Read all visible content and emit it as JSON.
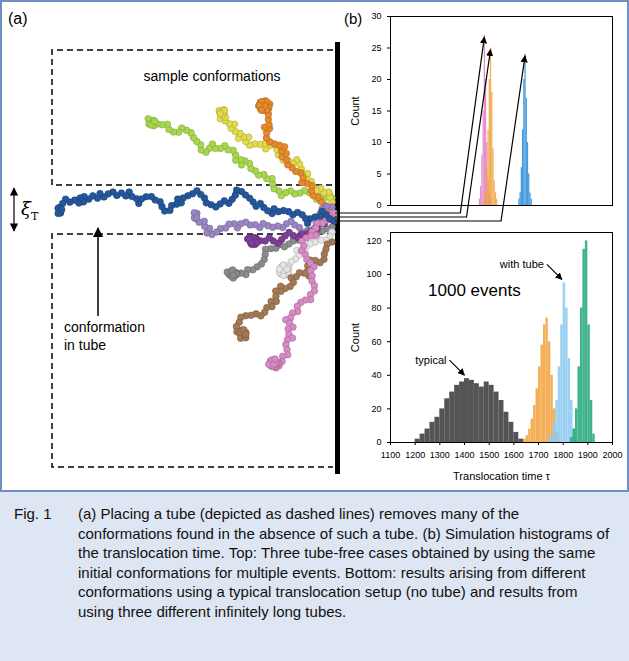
{
  "panels": {
    "a": "(a)",
    "b": "(b)"
  },
  "diagram": {
    "sample_label": "sample conformations",
    "tube_label": "conformation in tube",
    "tube_width_symbol": {
      "symbol": "ξ",
      "subscript": "T"
    }
  },
  "chart_data": [
    {
      "type": "histogram",
      "tick_labels": "y",
      "ylabel": "Count",
      "xlim": [
        1100,
        2000
      ],
      "ylim": [
        0,
        30
      ],
      "yticks": [
        0,
        5,
        10,
        15,
        20,
        25,
        30
      ],
      "series": [
        {
          "color": "#e07fc4",
          "bins": [
            1460,
            1465,
            1470,
            1475,
            1480,
            1485,
            1490,
            1495,
            1500,
            1505,
            1510
          ],
          "counts": [
            1,
            3,
            8,
            15,
            27,
            20,
            10,
            4,
            2,
            1
          ]
        },
        {
          "color": "#f0a23c",
          "bins": [
            1480,
            1485,
            1490,
            1495,
            1500,
            1505,
            1510,
            1515,
            1520,
            1525,
            1530,
            1535
          ],
          "counts": [
            1,
            2,
            6,
            12,
            20,
            25,
            18,
            9,
            4,
            2,
            1
          ]
        },
        {
          "color": "#2b8cd8",
          "bins": [
            1620,
            1625,
            1630,
            1635,
            1640,
            1645,
            1650,
            1655,
            1660,
            1665,
            1670,
            1675
          ],
          "counts": [
            1,
            2,
            6,
            12,
            20,
            24,
            17,
            10,
            5,
            2,
            1
          ]
        }
      ]
    },
    {
      "type": "histogram",
      "xlabel": "Translocation time τ",
      "ylabel": "Count",
      "xlim": [
        1100,
        2000
      ],
      "xticks": [
        1100,
        1200,
        1300,
        1400,
        1500,
        1600,
        1700,
        1800,
        1900,
        2000
      ],
      "ylim": [
        0,
        125
      ],
      "yticks": [
        0,
        20,
        40,
        60,
        80,
        100,
        120
      ],
      "annotations": [
        "1000 events"
      ],
      "series": [
        {
          "color": "#3c3c3c",
          "annotation": "typical",
          "bins": [
            1200,
            1220,
            1240,
            1260,
            1280,
            1300,
            1320,
            1340,
            1360,
            1380,
            1400,
            1420,
            1440,
            1460,
            1480,
            1500,
            1520,
            1540,
            1560,
            1580,
            1600,
            1620,
            1640
          ],
          "counts": [
            2,
            5,
            8,
            12,
            15,
            20,
            26,
            30,
            34,
            36,
            38,
            37,
            35,
            33,
            36,
            34,
            30,
            25,
            18,
            12,
            6,
            2
          ]
        },
        {
          "color": "#f2a541",
          "bins": [
            1640,
            1650,
            1660,
            1670,
            1680,
            1690,
            1700,
            1710,
            1720,
            1730,
            1740,
            1750,
            1760,
            1770,
            1780,
            1790
          ],
          "counts": [
            2,
            4,
            8,
            14,
            22,
            32,
            45,
            58,
            70,
            74,
            60,
            40,
            20,
            6,
            2
          ]
        },
        {
          "color": "#8ccbf0",
          "annotation": "with tube",
          "bins": [
            1740,
            1750,
            1760,
            1770,
            1780,
            1790,
            1800,
            1810,
            1820,
            1830,
            1840,
            1850,
            1860
          ],
          "counts": [
            2,
            5,
            12,
            25,
            45,
            70,
            95,
            80,
            50,
            25,
            8,
            2
          ]
        },
        {
          "color": "#26a97c",
          "bins": [
            1830,
            1840,
            1850,
            1860,
            1870,
            1880,
            1890,
            1900,
            1910,
            1920,
            1930
          ],
          "counts": [
            3,
            8,
            20,
            45,
            80,
            115,
            120,
            70,
            25,
            5
          ]
        }
      ]
    }
  ],
  "caption": {
    "label": "Fig. 1",
    "text": "(a) Placing a tube (depicted as dashed lines) removes many of the conformations found in the absence of such a tube. (b) Simulation histograms of the translocation time. Top: Three tube-free cases obtained by using the same initial conformations for multiple events. Bottom: results arising from different conformations using a typical translocation setup (no tube) and results from using three different infinitely long tubes."
  }
}
